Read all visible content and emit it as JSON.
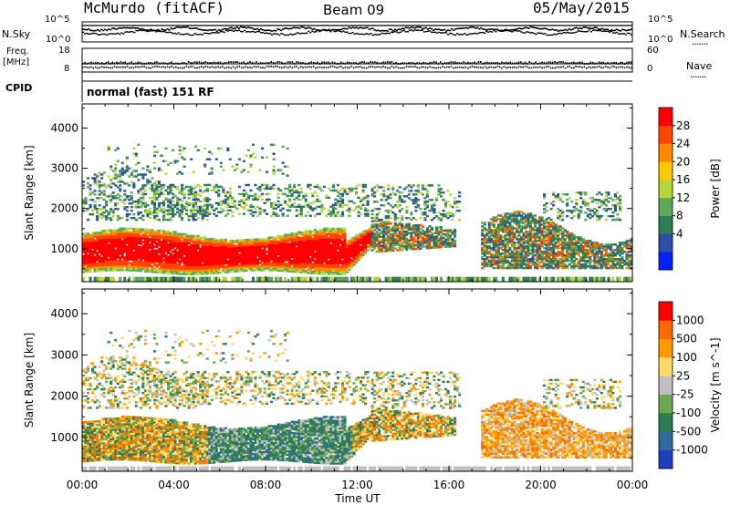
{
  "header": {
    "station": "McMurdo (fitACF)",
    "beam": "Beam 09",
    "date": "05/May/2015"
  },
  "side_labels": {
    "nsky": "N.Sky",
    "nsearch": "N.Search",
    "freq_label": "Freq.",
    "freq_unit": "[MHz]",
    "nave": "Nave",
    "cpid": "CPID",
    "dots": "......."
  },
  "strips": {
    "noise_left_ticks": [
      "10^5",
      "10^0"
    ],
    "noise_right_ticks": [
      "10^5",
      "10^0"
    ],
    "freq_left_ticks": [
      "18",
      "8"
    ],
    "nave_right_ticks": [
      "60",
      "0"
    ]
  },
  "cpid_text": "normal (fast) 151 RF",
  "chart_data": [
    {
      "type": "heatmap",
      "ylabel": "Slant Range [km]",
      "ylim": [
        180,
        4600
      ],
      "yticks": [
        1000,
        2000,
        3000,
        4000
      ],
      "xlim": [
        0,
        24
      ],
      "colorbar": {
        "label": "Power [dB]",
        "ticks": [
          "28",
          "24",
          "20",
          "16",
          "12",
          "8",
          "4"
        ],
        "colors": [
          "#0022ff",
          "#2e4fa8",
          "#2f7d55",
          "#5aa85a",
          "#b8d63a",
          "#ffc800",
          "#ff8a00",
          "#ff4500",
          "#ff0000"
        ]
      }
    },
    {
      "type": "heatmap",
      "ylabel": "Slant Range [km]",
      "ylim": [
        180,
        4600
      ],
      "yticks": [
        1000,
        2000,
        3000,
        4000
      ],
      "xlim": [
        0,
        24
      ],
      "colorbar": {
        "label": "Velocity [m s^-1]",
        "ticks": [
          "1000",
          "500",
          "100",
          "25",
          "-25",
          "-100",
          "-500",
          "-1000"
        ],
        "colors": [
          "#1f3fbf",
          "#2e6a9e",
          "#2f7d55",
          "#6aa84f",
          "#c0c0c0",
          "#ffd966",
          "#ff9a00",
          "#ff6a00",
          "#ff0000"
        ]
      }
    }
  ],
  "time_axis": {
    "label": "Time UT",
    "ticks": [
      "00:00",
      "04:00",
      "08:00",
      "12:00",
      "16:00",
      "20:00",
      "00:00"
    ]
  }
}
